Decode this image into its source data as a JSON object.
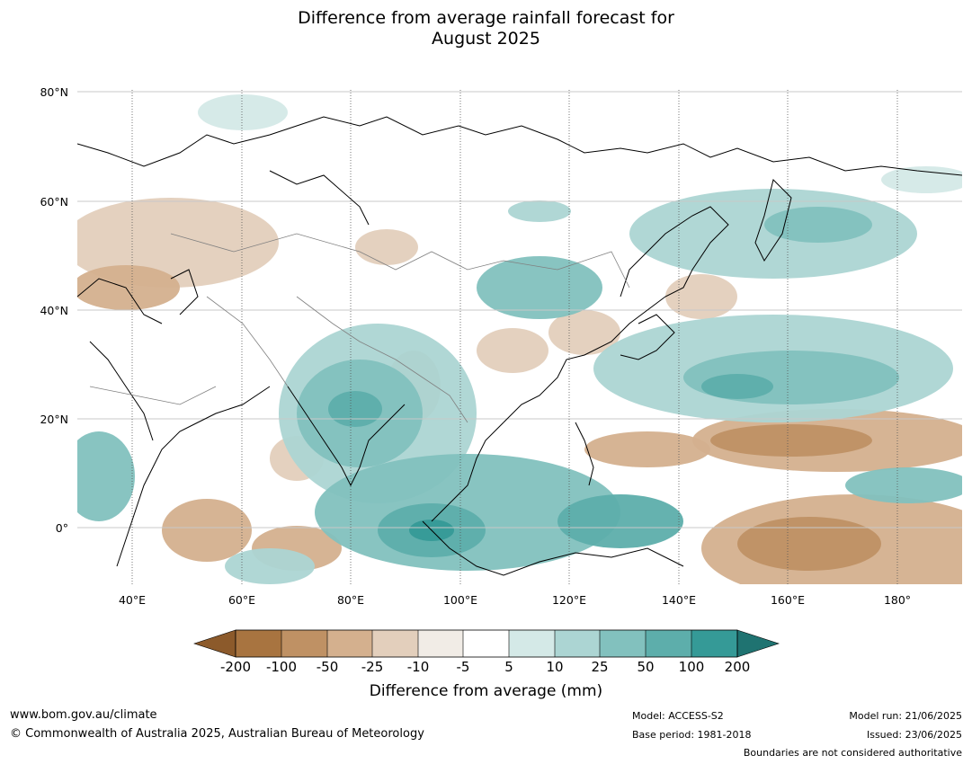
{
  "header": {
    "title_line1": "Difference from average rainfall forecast for",
    "title_line2": "August 2025"
  },
  "map": {
    "lat_labels": [
      "80°N",
      "60°N",
      "40°N",
      "20°N",
      "0°"
    ],
    "lon_labels": [
      "40°E",
      "60°E",
      "80°E",
      "100°E",
      "120°E",
      "140°E",
      "160°E",
      "180°"
    ],
    "colors": {
      "dry_200": "#8c5a2b",
      "dry_100": "#a87440",
      "dry_50": "#bf9164",
      "dry_25": "#d4b08e",
      "dry_10": "#e3cfbc",
      "dry_5": "#f1ece6",
      "neutral": "#ffffff",
      "wet_5": "#d4e9e7",
      "wet_10": "#acd5d3",
      "wet_25": "#82c1be",
      "wet_50": "#5daeab",
      "wet_100": "#359a97",
      "wet_200": "#1f7371"
    }
  },
  "colorbar": {
    "ticks": [
      "-200",
      "-100",
      "-50",
      "-25",
      "-10",
      "-5",
      "5",
      "10",
      "25",
      "50",
      "100",
      "200"
    ],
    "label": "Difference from average (mm)"
  },
  "footer": {
    "website": "www.bom.gov.au/climate",
    "copyright": "© Commonwealth of Australia 2025, Australian Bureau of Meteorology",
    "model": "Model: ACCESS-S2",
    "base_period": "Base period: 1981-2018",
    "model_run": "Model run: 21/06/2025",
    "issued": "Issued: 23/06/2025",
    "disclaimer": "Boundaries are not considered authoritative"
  }
}
